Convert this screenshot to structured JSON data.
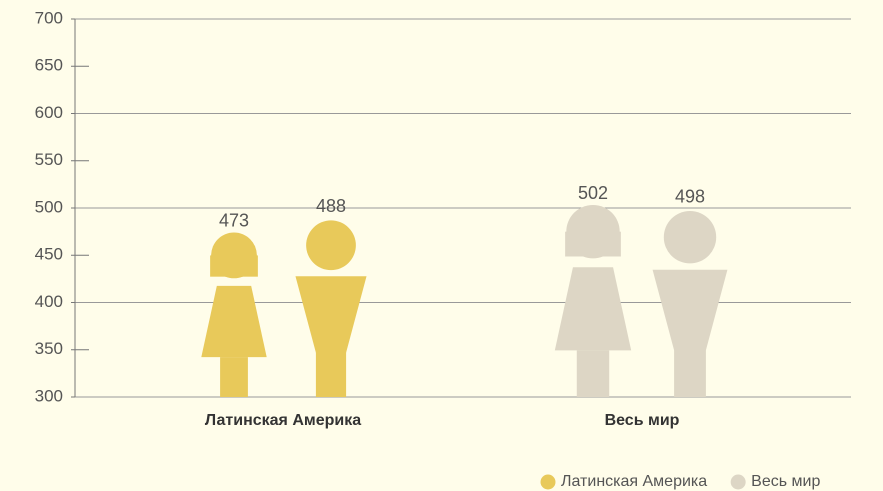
{
  "chart_data": {
    "type": "pictogram",
    "categories": [
      "Латинская Америка",
      "Весь мир"
    ],
    "series": [
      {
        "name": "Латинская Америка",
        "color": "#e8c95a",
        "values": [
          473,
          488
        ]
      },
      {
        "name": "Весь мир",
        "color": "#ddd6c5",
        "values": [
          502,
          498
        ]
      }
    ],
    "ylim": [
      300,
      700
    ],
    "yticks": [
      300,
      350,
      400,
      450,
      500,
      550,
      600,
      650,
      700
    ],
    "grid_step": 100
  }
}
